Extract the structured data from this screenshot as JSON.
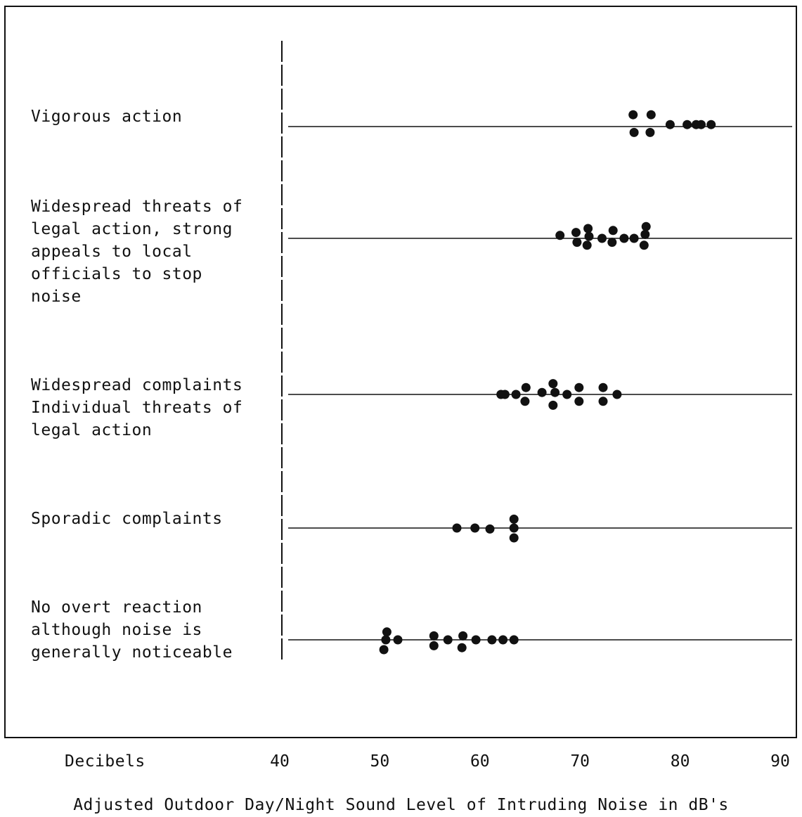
{
  "chart_data": {
    "type": "scatter",
    "xlabel": "Adjusted Outdoor Day/Night Sound Level of Intruding Noise in dB's",
    "x_unit_label": "Decibels",
    "xlim": [
      40,
      90
    ],
    "xticks": [
      40,
      50,
      60,
      70,
      80,
      90
    ],
    "categories": [
      {
        "label": "Vigorous action",
        "points": [
          {
            "x": 75.3,
            "y": 0.6
          },
          {
            "x": 77.1,
            "y": 0.6
          },
          {
            "x": 75.4,
            "y": -0.3
          },
          {
            "x": 77.0,
            "y": -0.3
          },
          {
            "x": 79.0,
            "y": 0.1
          },
          {
            "x": 80.7,
            "y": 0.1
          },
          {
            "x": 81.6,
            "y": 0.1
          },
          {
            "x": 82.1,
            "y": 0.1
          },
          {
            "x": 83.1,
            "y": 0.1
          }
        ]
      },
      {
        "label": "Widespread threats of\nlegal action, strong\nappeals to local\nofficials to stop\nnoise",
        "points": [
          {
            "x": 76.6,
            "y": 0.6
          },
          {
            "x": 70.8,
            "y": 0.5
          },
          {
            "x": 73.3,
            "y": 0.4
          },
          {
            "x": 69.6,
            "y": 0.3
          },
          {
            "x": 76.5,
            "y": 0.2
          },
          {
            "x": 68.0,
            "y": 0.15
          },
          {
            "x": 70.9,
            "y": 0.1
          },
          {
            "x": 72.2,
            "y": 0.0
          },
          {
            "x": 74.4,
            "y": 0.0
          },
          {
            "x": 75.4,
            "y": 0.0
          },
          {
            "x": 69.7,
            "y": -0.2
          },
          {
            "x": 73.2,
            "y": -0.2
          },
          {
            "x": 70.7,
            "y": -0.35
          },
          {
            "x": 76.4,
            "y": -0.35
          }
        ]
      },
      {
        "label": "Widespread complaints\nIndividual threats of\nlegal action",
        "points": [
          {
            "x": 67.3,
            "y": 0.55
          },
          {
            "x": 64.6,
            "y": 0.35
          },
          {
            "x": 69.9,
            "y": 0.35
          },
          {
            "x": 72.3,
            "y": 0.35
          },
          {
            "x": 62.1,
            "y": 0.0
          },
          {
            "x": 62.5,
            "y": 0.0
          },
          {
            "x": 63.6,
            "y": 0.0
          },
          {
            "x": 66.2,
            "y": 0.1
          },
          {
            "x": 67.5,
            "y": 0.1
          },
          {
            "x": 68.7,
            "y": 0.0
          },
          {
            "x": 73.7,
            "y": 0.0
          },
          {
            "x": 64.5,
            "y": -0.35
          },
          {
            "x": 69.9,
            "y": -0.35
          },
          {
            "x": 72.3,
            "y": -0.35
          },
          {
            "x": 67.3,
            "y": -0.55
          }
        ]
      },
      {
        "label": "Sporadic complaints",
        "points": [
          {
            "x": 63.4,
            "y": 0.45
          },
          {
            "x": 57.7,
            "y": 0.0
          },
          {
            "x": 59.5,
            "y": 0.0
          },
          {
            "x": 61.0,
            "y": -0.05
          },
          {
            "x": 63.4,
            "y": 0.0
          },
          {
            "x": 63.4,
            "y": -0.5
          }
        ]
      },
      {
        "label": "No overt reaction\nalthough noise is\ngenerally noticeable",
        "points": [
          {
            "x": 50.7,
            "y": 0.4
          },
          {
            "x": 55.4,
            "y": 0.2
          },
          {
            "x": 58.3,
            "y": 0.2
          },
          {
            "x": 50.6,
            "y": 0.0
          },
          {
            "x": 51.8,
            "y": 0.0
          },
          {
            "x": 56.8,
            "y": 0.0
          },
          {
            "x": 59.6,
            "y": 0.0
          },
          {
            "x": 61.2,
            "y": 0.0
          },
          {
            "x": 62.3,
            "y": 0.0
          },
          {
            "x": 63.4,
            "y": 0.0
          },
          {
            "x": 55.4,
            "y": -0.3
          },
          {
            "x": 58.2,
            "y": -0.4
          },
          {
            "x": 50.4,
            "y": -0.5
          }
        ]
      }
    ]
  }
}
